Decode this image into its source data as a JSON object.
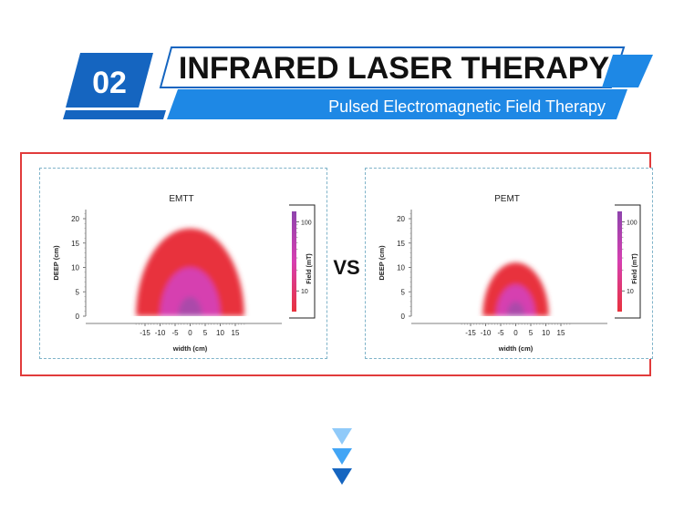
{
  "header": {
    "number": "02",
    "title": "INFRARED LASER THERAPY",
    "subtitle": "Pulsed Electromagnetic Field Therapy",
    "accent_color": "#1565c0",
    "light_accent_color": "#1e88e5"
  },
  "comparison": {
    "vs_label": "VS",
    "frame_color": "#e13b3b",
    "panel_border_color": "#7fb3c9"
  },
  "chart_data": [
    {
      "type": "heatmap",
      "title": "EMTT",
      "xlabel": "width (cm)",
      "ylabel": "DEEP (cm)",
      "xlim": [
        -18,
        18
      ],
      "ylim": [
        0,
        21
      ],
      "xticks": [
        -15,
        -10,
        -5,
        0,
        5,
        10,
        15
      ],
      "yticks": [
        0,
        5,
        10,
        15,
        20
      ],
      "zones": [
        {
          "level": "outer",
          "radius": 18,
          "color": "#e8323c"
        },
        {
          "level": "middle",
          "radius": 10,
          "color": "#d63fb0"
        },
        {
          "level": "core",
          "radius": 4,
          "color": "#9c4fa8"
        }
      ],
      "colorbar": {
        "label": "Field  (mT)",
        "ticks": [
          10,
          100
        ],
        "scale": "log",
        "colors": [
          "#e8323c",
          "#d63fb0",
          "#8e44ad"
        ]
      }
    },
    {
      "type": "heatmap",
      "title": "PEMT",
      "xlabel": "width (cm)",
      "ylabel": "DEEP (cm)",
      "xlim": [
        -18,
        18
      ],
      "ylim": [
        0,
        21
      ],
      "xticks": [
        -15,
        -10,
        -5,
        0,
        5,
        10,
        15
      ],
      "yticks": [
        0,
        5,
        10,
        15,
        20
      ],
      "zones": [
        {
          "level": "outer",
          "radius": 11,
          "color": "#e8323c"
        },
        {
          "level": "middle",
          "radius": 6.5,
          "color": "#d63fb0"
        },
        {
          "level": "core",
          "radius": 3,
          "color": "#9c4fa8"
        }
      ],
      "colorbar": {
        "label": "Field  (mT)",
        "ticks": [
          10,
          100
        ],
        "scale": "log",
        "colors": [
          "#e8323c",
          "#d63fb0",
          "#8e44ad"
        ]
      }
    }
  ],
  "icons": {
    "scroll_indicator": "triple-down-arrow-icon"
  }
}
